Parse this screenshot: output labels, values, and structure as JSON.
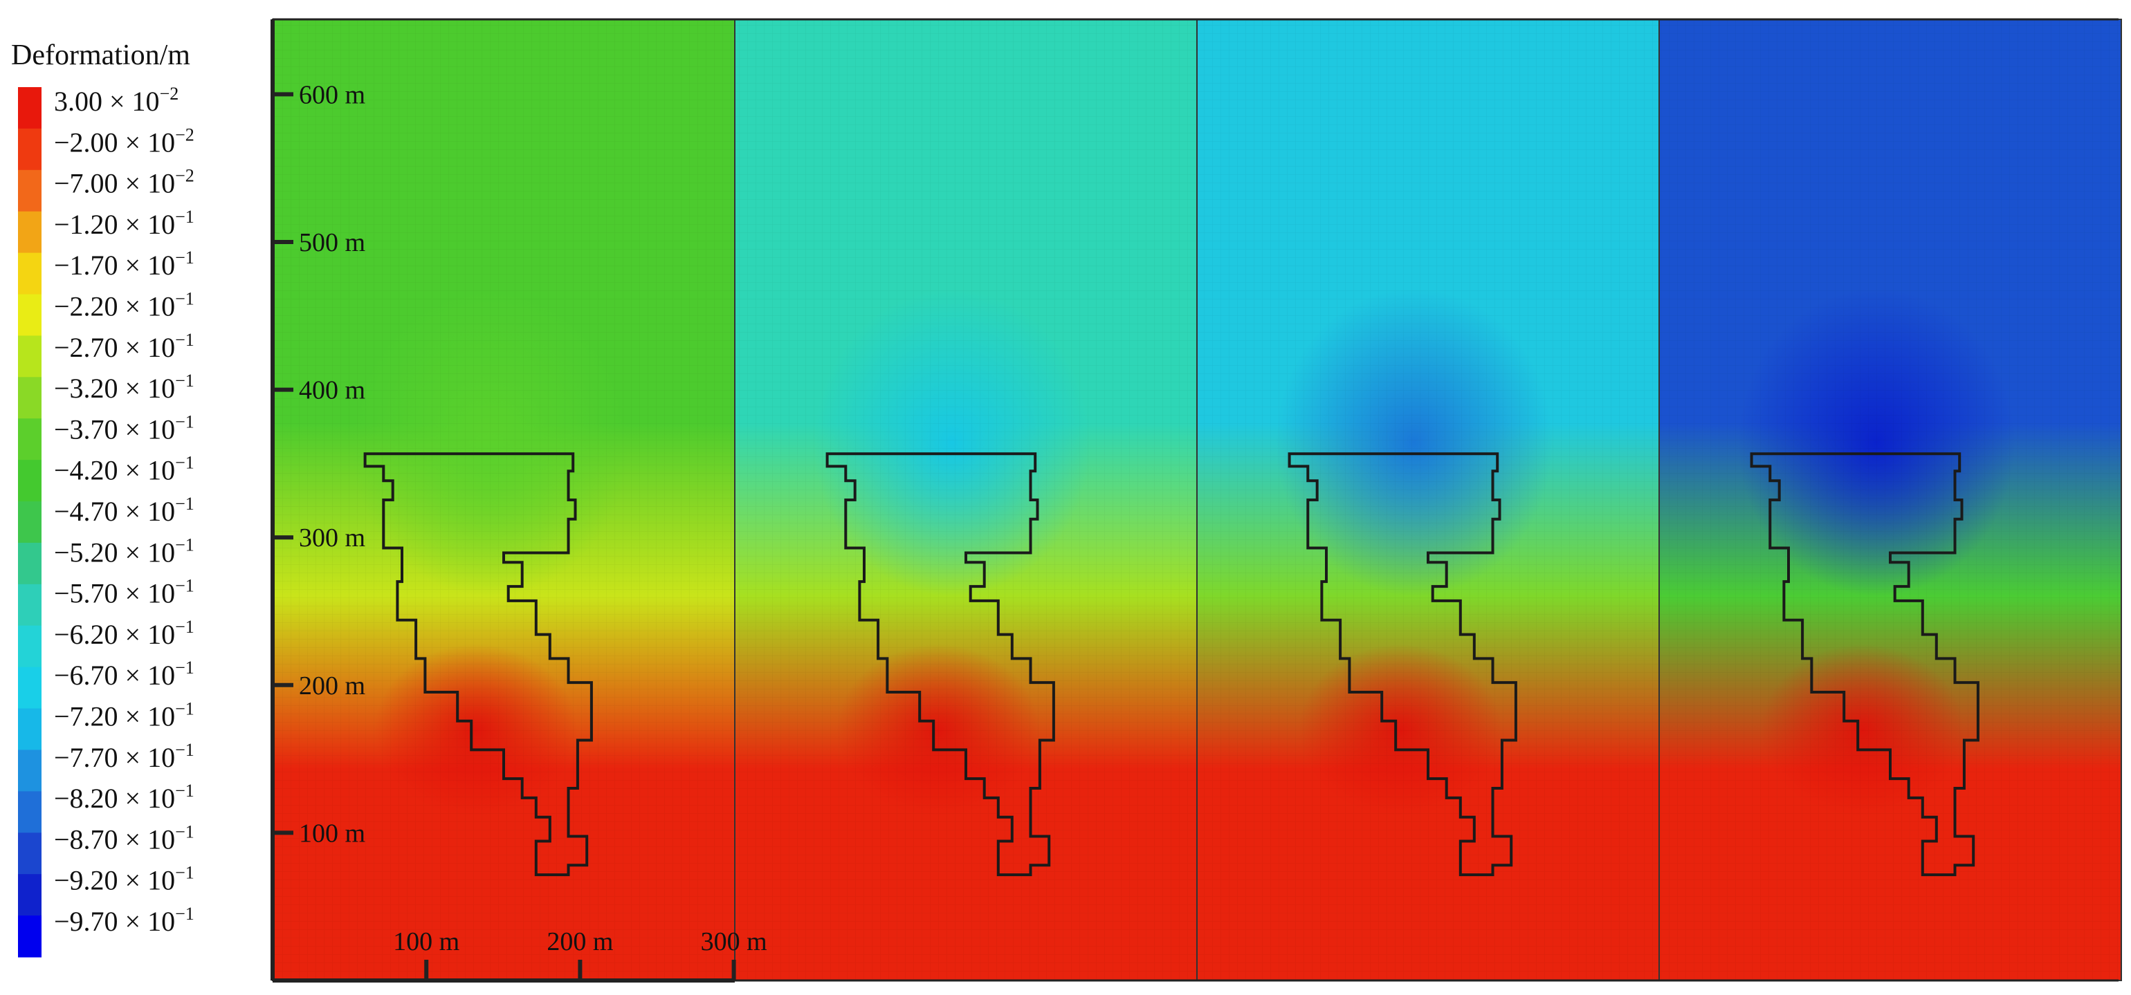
{
  "chart_data": {
    "type": "heatmap",
    "colorbar": {
      "title": "Deformation/m",
      "colors": [
        "#e8180c",
        "#ef3a10",
        "#f2681a",
        "#f2a516",
        "#f4d512",
        "#e9ec15",
        "#b7e51c",
        "#8ad926",
        "#5ccf2c",
        "#44c92f",
        "#3ec64c",
        "#33c88d",
        "#2ecfb8",
        "#23d3d7",
        "#19cfe8",
        "#17b8e8",
        "#1e92e0",
        "#1f6fd8",
        "#1b46cf",
        "#0f22cc",
        "#0000ee"
      ],
      "labels": [
        {
          "mantissa": "3.00",
          "exponent": "−2"
        },
        {
          "mantissa": "−2.00",
          "exponent": "−2"
        },
        {
          "mantissa": "−7.00",
          "exponent": "−2"
        },
        {
          "mantissa": "−1.20",
          "exponent": "−1"
        },
        {
          "mantissa": "−1.70",
          "exponent": "−1"
        },
        {
          "mantissa": "−2.20",
          "exponent": "−1"
        },
        {
          "mantissa": "−2.70",
          "exponent": "−1"
        },
        {
          "mantissa": "−3.20",
          "exponent": "−1"
        },
        {
          "mantissa": "−3.70",
          "exponent": "−1"
        },
        {
          "mantissa": "−4.20",
          "exponent": "−1"
        },
        {
          "mantissa": "−4.70",
          "exponent": "−1"
        },
        {
          "mantissa": "−5.20",
          "exponent": "−1"
        },
        {
          "mantissa": "−5.70",
          "exponent": "−1"
        },
        {
          "mantissa": "−6.20",
          "exponent": "−1"
        },
        {
          "mantissa": "−6.70",
          "exponent": "−1"
        },
        {
          "mantissa": "−7.20",
          "exponent": "−1"
        },
        {
          "mantissa": "−7.70",
          "exponent": "−1"
        },
        {
          "mantissa": "−8.20",
          "exponent": "−1"
        },
        {
          "mantissa": "−8.70",
          "exponent": "−1"
        },
        {
          "mantissa": "−9.20",
          "exponent": "−1"
        },
        {
          "mantissa": "−9.70",
          "exponent": "−1"
        }
      ]
    },
    "y_axis": {
      "ticks": [
        600,
        500,
        400,
        300,
        200,
        100
      ],
      "unit": "m"
    },
    "x_axis": {
      "ticks": [
        100,
        200,
        300
      ],
      "unit": "m"
    },
    "panels": [
      {
        "top_color": "#4ccb2e",
        "mid_color": "#c9e41a",
        "bottom_color": "#e8230d",
        "focus_color": "#5bd12c"
      },
      {
        "top_color": "#2ed6b6",
        "mid_color": "#a7e020",
        "bottom_color": "#e8230d",
        "focus_color": "#18c8e4"
      },
      {
        "top_color": "#1fc8e0",
        "mid_color": "#7fd82a",
        "bottom_color": "#e8230d",
        "focus_color": "#1a78d8"
      },
      {
        "top_color": "#1a52cf",
        "mid_color": "#4bcc34",
        "bottom_color": "#e8230d",
        "focus_color": "#0a22cc"
      }
    ]
  }
}
